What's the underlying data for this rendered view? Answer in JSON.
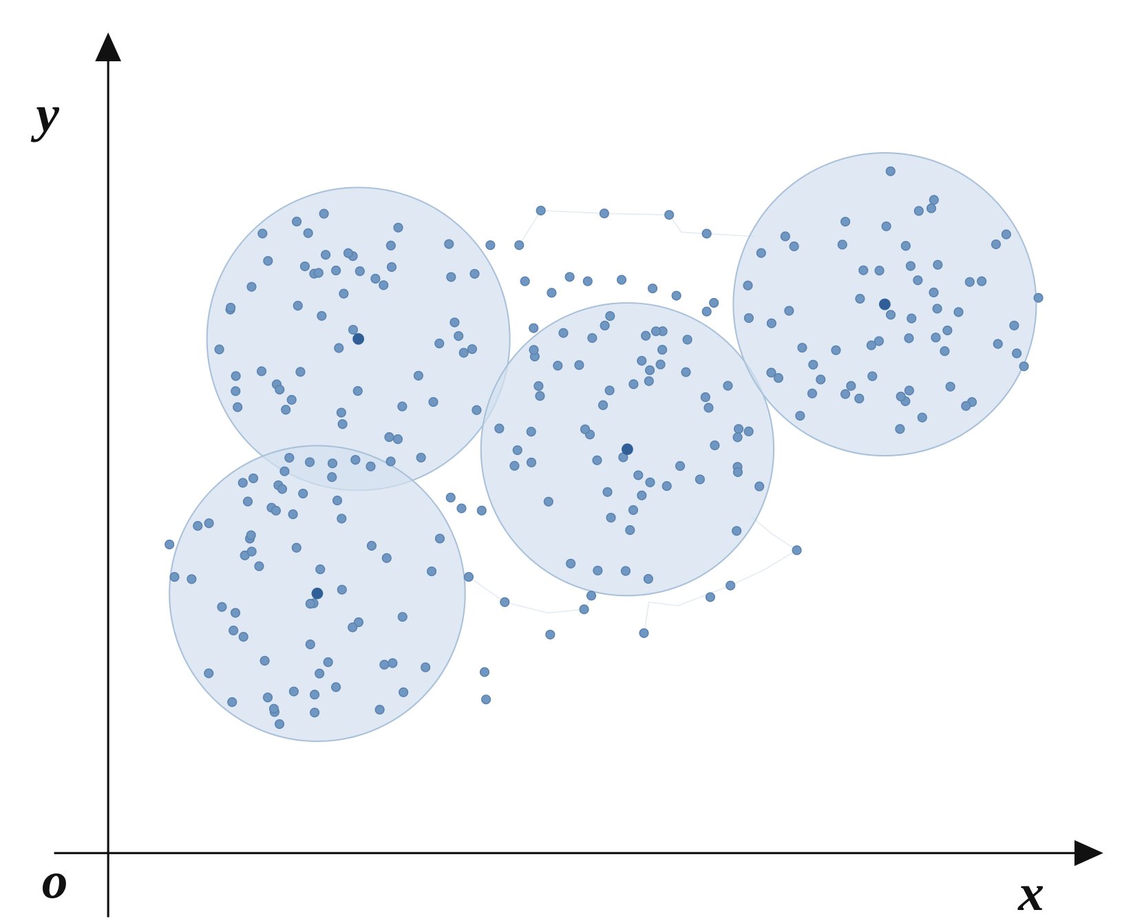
{
  "axes": {
    "y_label": "y",
    "x_label": "x",
    "origin_label": "o"
  }
}
